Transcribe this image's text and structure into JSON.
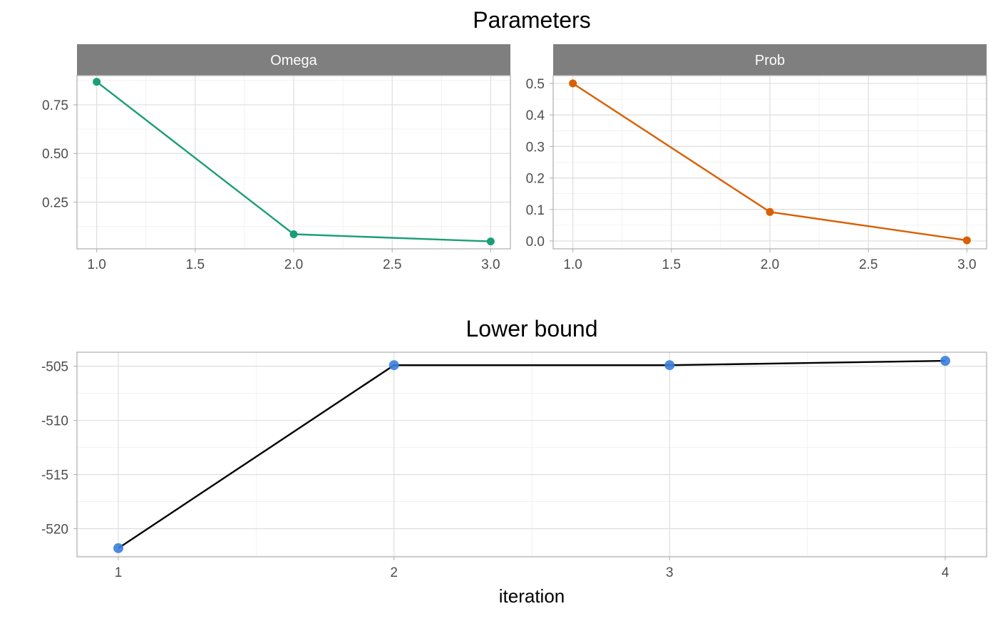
{
  "titles": {
    "top": "Parameters",
    "bottom": "Lower bound"
  },
  "xlabel_bottom": "iteration",
  "colors": {
    "omega": "#1b9e77",
    "prob": "#d95f02",
    "lower_bound_line": "#000000",
    "lower_bound_points": "#3a7fdb",
    "strip_bg": "#7f7f7f"
  },
  "chart_data": [
    {
      "type": "line",
      "facet": "Omega",
      "x": [
        1,
        2,
        3
      ],
      "y": [
        0.868,
        0.085,
        0.048
      ],
      "xlim": [
        0.9,
        3.1
      ],
      "ylim": [
        0.01,
        0.9
      ],
      "xticks": [
        1.0,
        1.5,
        2.0,
        2.5,
        3.0
      ],
      "xtick_labels": [
        "1.0",
        "1.5",
        "2.0",
        "2.5",
        "3.0"
      ],
      "yticks": [
        0.25,
        0.5,
        0.75
      ],
      "ytick_labels": [
        "0.25",
        "0.50",
        "0.75"
      ],
      "grid": true,
      "markers": true
    },
    {
      "type": "line",
      "facet": "Prob",
      "x": [
        1,
        2,
        3
      ],
      "y": [
        0.5,
        0.092,
        0.002
      ],
      "xlim": [
        0.9,
        3.1
      ],
      "ylim": [
        -0.025,
        0.525
      ],
      "xticks": [
        1.0,
        1.5,
        2.0,
        2.5,
        3.0
      ],
      "xtick_labels": [
        "1.0",
        "1.5",
        "2.0",
        "2.5",
        "3.0"
      ],
      "yticks": [
        0.0,
        0.1,
        0.2,
        0.3,
        0.4,
        0.5
      ],
      "ytick_labels": [
        "0.0",
        "0.1",
        "0.2",
        "0.3",
        "0.4",
        "0.5"
      ],
      "grid": true,
      "markers": true
    },
    {
      "type": "line",
      "title": "Lower bound",
      "x": [
        1,
        2,
        3,
        4
      ],
      "y": [
        -521.8,
        -504.9,
        -504.9,
        -504.5
      ],
      "xlim": [
        0.85,
        4.15
      ],
      "ylim": [
        -522.6,
        -503.7
      ],
      "xticks": [
        1,
        2,
        3,
        4
      ],
      "xtick_labels": [
        "1",
        "2",
        "3",
        "4"
      ],
      "yticks": [
        -520,
        -515,
        -510,
        -505
      ],
      "ytick_labels": [
        "-520",
        "-515",
        "-510",
        "-505"
      ],
      "xlabel": "iteration",
      "grid": true,
      "markers": true
    }
  ]
}
